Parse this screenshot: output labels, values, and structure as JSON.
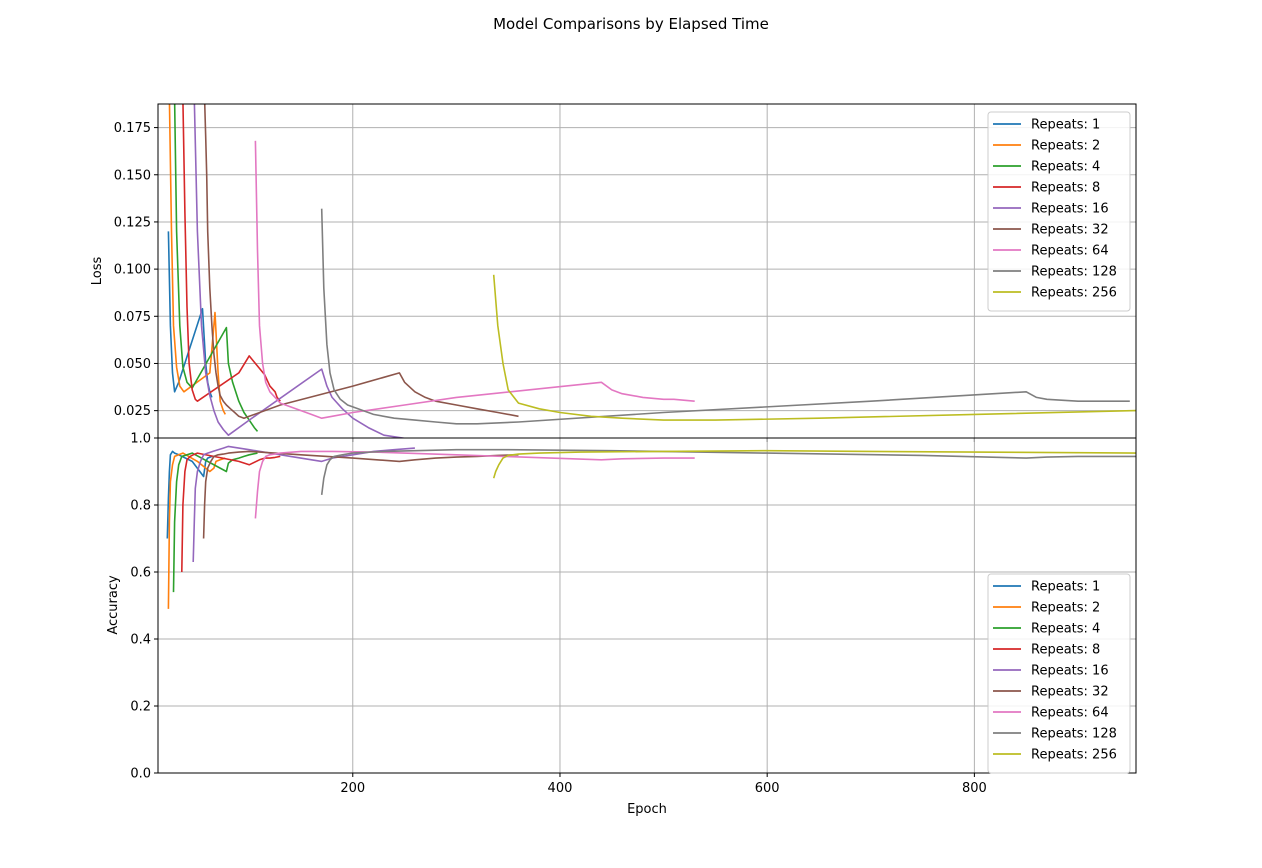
{
  "figure": {
    "title": "Model Comparisons by Elapsed Time"
  },
  "colors": {
    "Repeats: 1": "#1f77b4",
    "Repeats: 2": "#ff7f0e",
    "Repeats: 4": "#2ca02c",
    "Repeats: 8": "#d62728",
    "Repeats: 16": "#9467bd",
    "Repeats: 32": "#8c564b",
    "Repeats: 64": "#e377c2",
    "Repeats: 128": "#7f7f7f",
    "Repeats: 256": "#bcbd22"
  },
  "chart_data": [
    {
      "type": "line",
      "title": "Model Comparisons by Elapsed Time",
      "xlabel": "",
      "ylabel": "Loss",
      "xlim": [
        12,
        956
      ],
      "ylim": [
        0.0105,
        0.1875
      ],
      "xticks": [
        200,
        400,
        600,
        800
      ],
      "yticks": [
        0.025,
        0.05,
        0.075,
        0.1,
        0.125,
        0.15,
        0.175
      ],
      "ytick_labels": [
        "0.025",
        "0.050",
        "0.075",
        "0.100",
        "0.125",
        "0.150",
        "0.175"
      ],
      "grid": true,
      "legend_position": "upper right",
      "series": [
        {
          "name": "Repeats: 1",
          "x": [
            22,
            24,
            26,
            28,
            32,
            55,
            58,
            60,
            62,
            64
          ],
          "y": [
            0.12,
            0.07,
            0.045,
            0.035,
            0.04,
            0.079,
            0.05,
            0.04,
            0.035,
            0.032
          ]
        },
        {
          "name": "Repeats: 2",
          "x": [
            23,
            25,
            27,
            30,
            33,
            37,
            62,
            67,
            70,
            72,
            75,
            77
          ],
          "y": [
            0.19,
            0.12,
            0.07,
            0.048,
            0.038,
            0.035,
            0.045,
            0.077,
            0.045,
            0.03,
            0.025,
            0.023
          ]
        },
        {
          "name": "Repeats: 4",
          "x": [
            28,
            30,
            33,
            36,
            40,
            45,
            78,
            80,
            84,
            90,
            95,
            100,
            105,
            108
          ],
          "y": [
            0.19,
            0.12,
            0.07,
            0.048,
            0.04,
            0.037,
            0.069,
            0.05,
            0.04,
            0.03,
            0.024,
            0.02,
            0.016,
            0.014
          ]
        },
        {
          "name": "Repeats: 8",
          "x": [
            36,
            38,
            40,
            42,
            45,
            48,
            50,
            90,
            100,
            115,
            120,
            125,
            127,
            130
          ],
          "y": [
            0.19,
            0.13,
            0.08,
            0.05,
            0.036,
            0.031,
            0.03,
            0.045,
            0.054,
            0.044,
            0.038,
            0.035,
            0.032,
            0.03
          ]
        },
        {
          "name": "Repeats: 16",
          "x": [
            47,
            50,
            54,
            58,
            62,
            66,
            70,
            75,
            80,
            100,
            170,
            175,
            180,
            190,
            200,
            215,
            230,
            260
          ],
          "y": [
            0.19,
            0.12,
            0.07,
            0.045,
            0.033,
            0.025,
            0.019,
            0.015,
            0.012,
            0.02,
            0.047,
            0.038,
            0.032,
            0.026,
            0.021,
            0.016,
            0.012,
            0.0095
          ]
        },
        {
          "name": "Repeats: 32",
          "x": [
            57,
            58,
            59,
            60,
            62,
            64,
            66,
            68,
            70,
            72,
            75,
            78,
            82,
            86,
            90,
            95,
            100,
            130,
            200,
            245,
            250,
            260,
            270,
            280,
            300,
            320,
            340,
            360
          ],
          "y": [
            0.19,
            0.17,
            0.15,
            0.12,
            0.09,
            0.07,
            0.055,
            0.045,
            0.038,
            0.033,
            0.03,
            0.028,
            0.026,
            0.024,
            0.022,
            0.021,
            0.022,
            0.028,
            0.038,
            0.045,
            0.04,
            0.035,
            0.032,
            0.03,
            0.028,
            0.026,
            0.024,
            0.022
          ]
        },
        {
          "name": "Repeats: 64",
          "x": [
            106,
            108,
            110,
            113,
            116,
            120,
            125,
            130,
            140,
            150,
            160,
            170,
            180,
            200,
            250,
            300,
            440,
            450,
            460,
            480,
            500,
            510,
            530
          ],
          "y": [
            0.168,
            0.11,
            0.07,
            0.05,
            0.04,
            0.035,
            0.032,
            0.029,
            0.027,
            0.025,
            0.023,
            0.021,
            0.022,
            0.024,
            0.028,
            0.032,
            0.04,
            0.036,
            0.034,
            0.032,
            0.031,
            0.031,
            0.03
          ]
        },
        {
          "name": "Repeats: 128",
          "x": [
            170,
            172,
            175,
            178,
            182,
            188,
            195,
            205,
            220,
            240,
            260,
            280,
            300,
            320,
            360,
            500,
            700,
            850,
            860,
            870,
            900,
            950
          ],
          "y": [
            0.132,
            0.09,
            0.06,
            0.045,
            0.036,
            0.031,
            0.028,
            0.026,
            0.023,
            0.021,
            0.02,
            0.019,
            0.018,
            0.018,
            0.019,
            0.024,
            0.03,
            0.035,
            0.032,
            0.031,
            0.03,
            0.03
          ]
        },
        {
          "name": "Repeats: 256",
          "x": [
            336,
            340,
            345,
            350,
            360,
            380,
            400,
            430,
            460,
            500,
            550,
            650,
            800,
            956
          ],
          "y": [
            0.097,
            0.07,
            0.05,
            0.036,
            0.029,
            0.026,
            0.024,
            0.022,
            0.021,
            0.02,
            0.02,
            0.021,
            0.023,
            0.025
          ]
        }
      ]
    },
    {
      "type": "line",
      "xlabel": "Epoch",
      "ylabel": "Accuracy",
      "xlim": [
        12,
        956
      ],
      "ylim": [
        0.0,
        1.0
      ],
      "xticks": [
        200,
        400,
        600,
        800
      ],
      "xtick_labels": [
        "200",
        "400",
        "600",
        "800"
      ],
      "yticks": [
        0.0,
        0.2,
        0.4,
        0.6,
        0.8,
        1.0
      ],
      "ytick_labels": [
        "0.0",
        "0.2",
        "0.4",
        "0.6",
        "0.8",
        "1.0"
      ],
      "grid": true,
      "legend_position": "lower right",
      "series": [
        {
          "name": "Repeats: 1",
          "x": [
            21,
            22,
            23,
            24,
            26,
            28,
            32,
            45,
            56,
            58,
            60,
            64
          ],
          "y": [
            0.7,
            0.82,
            0.9,
            0.95,
            0.96,
            0.955,
            0.95,
            0.93,
            0.885,
            0.93,
            0.94,
            0.945
          ]
        },
        {
          "name": "Repeats: 2",
          "x": [
            22,
            23,
            24,
            26,
            28,
            32,
            36,
            50,
            62,
            66,
            68,
            72,
            77
          ],
          "y": [
            0.49,
            0.75,
            0.87,
            0.92,
            0.945,
            0.95,
            0.955,
            0.93,
            0.9,
            0.91,
            0.93,
            0.935,
            0.94
          ]
        },
        {
          "name": "Repeats: 4",
          "x": [
            27,
            28,
            30,
            32,
            35,
            40,
            45,
            78,
            80,
            84,
            90,
            95,
            100,
            108
          ],
          "y": [
            0.54,
            0.75,
            0.87,
            0.92,
            0.945,
            0.95,
            0.955,
            0.9,
            0.925,
            0.935,
            0.94,
            0.945,
            0.95,
            0.955
          ]
        },
        {
          "name": "Repeats: 8",
          "x": [
            35,
            36,
            38,
            40,
            43,
            46,
            50,
            90,
            100,
            110,
            115,
            120,
            125,
            130
          ],
          "y": [
            0.6,
            0.8,
            0.9,
            0.935,
            0.945,
            0.95,
            0.955,
            0.93,
            0.92,
            0.935,
            0.94,
            0.94,
            0.942,
            0.945
          ]
        },
        {
          "name": "Repeats: 16",
          "x": [
            46,
            47,
            48,
            50,
            53,
            56,
            60,
            65,
            70,
            75,
            80,
            90,
            100,
            120,
            140,
            170,
            180,
            200,
            220,
            240,
            260
          ],
          "y": [
            0.63,
            0.75,
            0.85,
            0.9,
            0.93,
            0.95,
            0.955,
            0.96,
            0.965,
            0.97,
            0.975,
            0.97,
            0.965,
            0.955,
            0.945,
            0.93,
            0.94,
            0.95,
            0.96,
            0.965,
            0.97
          ]
        },
        {
          "name": "Repeats: 32",
          "x": [
            56,
            57,
            58,
            60,
            63,
            66,
            70,
            75,
            80,
            90,
            100,
            150,
            200,
            245,
            260,
            280,
            300,
            320,
            340,
            360
          ],
          "y": [
            0.7,
            0.8,
            0.87,
            0.91,
            0.93,
            0.945,
            0.95,
            0.952,
            0.955,
            0.958,
            0.96,
            0.95,
            0.94,
            0.93,
            0.935,
            0.94,
            0.943,
            0.945,
            0.948,
            0.95
          ]
        },
        {
          "name": "Repeats: 64",
          "x": [
            106,
            108,
            110,
            113,
            116,
            120,
            130,
            150,
            180,
            220,
            300,
            440,
            460,
            500,
            530
          ],
          "y": [
            0.76,
            0.84,
            0.9,
            0.93,
            0.945,
            0.95,
            0.955,
            0.96,
            0.96,
            0.958,
            0.95,
            0.935,
            0.938,
            0.94,
            0.94
          ]
        },
        {
          "name": "Repeats: 128",
          "x": [
            170,
            172,
            175,
            178,
            182,
            190,
            200,
            230,
            260,
            300,
            350,
            450,
            600,
            750,
            850,
            870,
            900,
            956
          ],
          "y": [
            0.83,
            0.88,
            0.92,
            0.935,
            0.945,
            0.95,
            0.955,
            0.96,
            0.962,
            0.965,
            0.965,
            0.962,
            0.955,
            0.948,
            0.94,
            0.943,
            0.945,
            0.945
          ]
        },
        {
          "name": "Repeats: 256",
          "x": [
            336,
            338,
            341,
            345,
            350,
            360,
            380,
            420,
            500,
            600,
            700,
            800,
            900,
            956
          ],
          "y": [
            0.88,
            0.9,
            0.92,
            0.94,
            0.948,
            0.952,
            0.955,
            0.958,
            0.96,
            0.962,
            0.96,
            0.958,
            0.956,
            0.955
          ]
        }
      ]
    }
  ]
}
